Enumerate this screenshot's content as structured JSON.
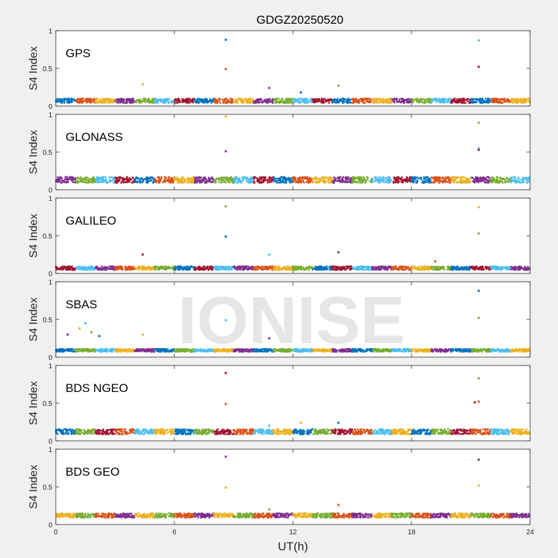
{
  "figure": {
    "title": "GDGZ20250520",
    "xlabel": "UT(h)",
    "ylabel": "S4 Index",
    "watermark": "IONISE",
    "background": "#f0f0f0"
  },
  "chart_data": [
    {
      "type": "scatter",
      "label": "GPS",
      "xlim": [
        0,
        24
      ],
      "ylim": [
        0,
        1
      ],
      "xticks": [
        0,
        6,
        12,
        18,
        24
      ],
      "yticks": [
        0,
        0.5,
        1
      ],
      "baseline": 0.07,
      "noise": 0.03,
      "colors": [
        "#0072bd",
        "#d95319",
        "#edb120",
        "#7e2f8e",
        "#77ac30",
        "#4dbeee",
        "#a2142f"
      ],
      "outliers": [
        [
          8.6,
          0.88
        ],
        [
          8.6,
          0.49
        ],
        [
          4.4,
          0.29
        ],
        [
          10.8,
          0.24
        ],
        [
          14.3,
          0.27
        ],
        [
          21.4,
          0.87
        ],
        [
          21.4,
          0.52
        ],
        [
          12.4,
          0.18
        ]
      ]
    },
    {
      "type": "scatter",
      "label": "GLONASS",
      "xlim": [
        0,
        24
      ],
      "ylim": [
        0,
        1
      ],
      "xticks": [
        0,
        6,
        12,
        18,
        24
      ],
      "yticks": [
        0,
        0.5,
        1
      ],
      "baseline": 0.13,
      "noise": 0.04,
      "colors": [
        "#edb120",
        "#7e2f8e",
        "#77ac30",
        "#4dbeee",
        "#a2142f",
        "#0072bd",
        "#d95319"
      ],
      "outliers": [
        [
          8.6,
          0.97
        ],
        [
          8.6,
          0.51
        ],
        [
          21.4,
          0.89
        ],
        [
          21.4,
          0.55
        ],
        [
          21.4,
          0.53
        ]
      ]
    },
    {
      "type": "scatter",
      "label": "GALILEO",
      "xlim": [
        0,
        24
      ],
      "ylim": [
        0,
        1
      ],
      "xticks": [
        0,
        6,
        12,
        18,
        24
      ],
      "yticks": [
        0,
        0.5,
        1
      ],
      "baseline": 0.07,
      "noise": 0.025,
      "colors": [
        "#77ac30",
        "#0072bd",
        "#a2142f",
        "#4dbeee",
        "#7e2f8e",
        "#d95319",
        "#edb120"
      ],
      "outliers": [
        [
          8.6,
          0.89
        ],
        [
          8.6,
          0.49
        ],
        [
          4.4,
          0.25
        ],
        [
          10.8,
          0.25
        ],
        [
          14.3,
          0.28
        ],
        [
          19.2,
          0.16
        ],
        [
          21.4,
          0.88
        ],
        [
          21.4,
          0.53
        ]
      ]
    },
    {
      "type": "scatter",
      "label": "SBAS",
      "xlim": [
        0,
        24
      ],
      "ylim": [
        0,
        1
      ],
      "xticks": [
        0,
        6,
        12,
        18,
        24
      ],
      "yticks": [
        0,
        0.5,
        1
      ],
      "baseline": 0.09,
      "noise": 0.02,
      "colors": [
        "#4dbeee",
        "#edb120",
        "#7e2f8e",
        "#0072bd",
        "#77ac30"
      ],
      "outliers": [
        [
          8.6,
          0.49
        ],
        [
          4.4,
          0.3
        ],
        [
          10.8,
          0.25
        ],
        [
          21.4,
          0.88
        ],
        [
          21.4,
          0.52
        ],
        [
          1.5,
          0.45
        ],
        [
          1.2,
          0.38
        ],
        [
          0.6,
          0.3
        ],
        [
          2.2,
          0.28
        ],
        [
          1.8,
          0.33
        ]
      ]
    },
    {
      "type": "scatter",
      "label": "BDS NGEO",
      "xlim": [
        0,
        24
      ],
      "ylim": [
        0,
        1
      ],
      "xticks": [
        0,
        6,
        12,
        18,
        24
      ],
      "yticks": [
        0,
        0.5,
        1
      ],
      "baseline": 0.12,
      "noise": 0.035,
      "colors": [
        "#a2142f",
        "#d95319",
        "#4dbeee",
        "#edb120",
        "#0072bd",
        "#77ac30"
      ],
      "outliers": [
        [
          8.6,
          0.9
        ],
        [
          8.6,
          0.49
        ],
        [
          10.8,
          0.2
        ],
        [
          12.4,
          0.24
        ],
        [
          14.3,
          0.24
        ],
        [
          21.4,
          0.83
        ],
        [
          21.2,
          0.51
        ],
        [
          21.4,
          0.52
        ]
      ]
    },
    {
      "type": "scatter",
      "label": "BDS GEO",
      "xlim": [
        0,
        24
      ],
      "ylim": [
        0,
        1
      ],
      "xticks": [
        0,
        6,
        12,
        18,
        24
      ],
      "yticks": [
        0,
        0.5,
        1
      ],
      "baseline": 0.12,
      "noise": 0.03,
      "colors": [
        "#7e2f8e",
        "#edb120",
        "#77ac30",
        "#d95319"
      ],
      "outliers": [
        [
          8.6,
          0.9
        ],
        [
          8.6,
          0.49
        ],
        [
          10.8,
          0.2
        ],
        [
          14.3,
          0.26
        ],
        [
          21.4,
          0.86
        ],
        [
          21.4,
          0.52
        ]
      ]
    }
  ]
}
